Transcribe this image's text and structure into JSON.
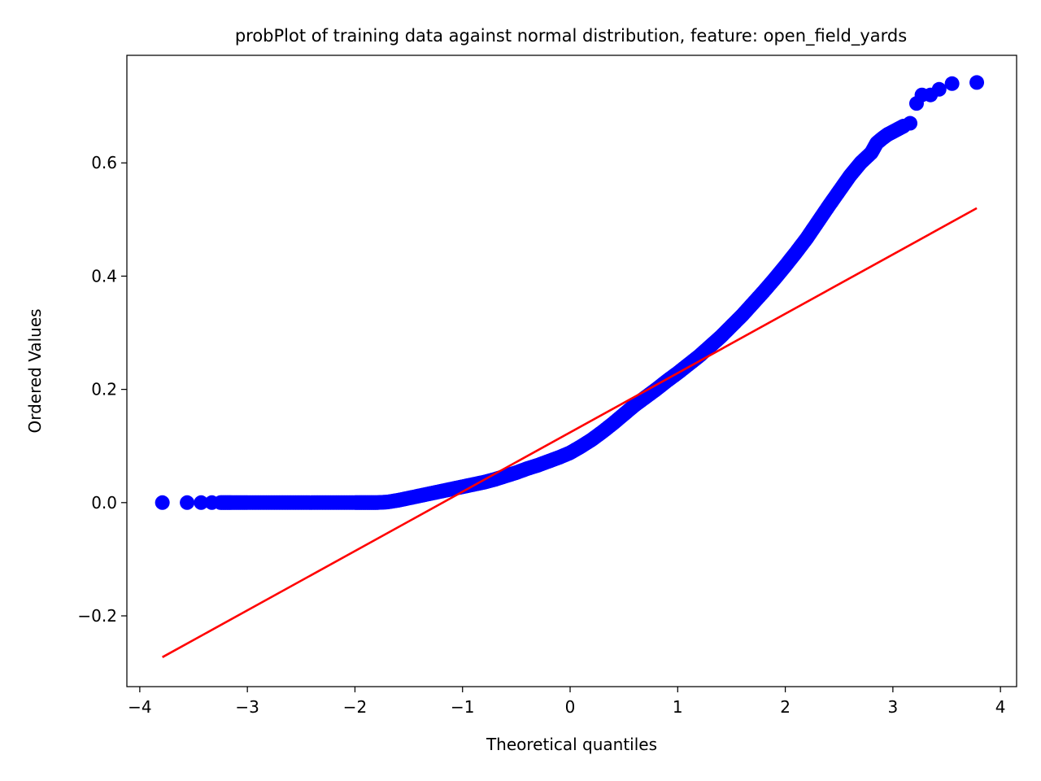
{
  "chart_data": {
    "type": "scatter",
    "title": "probPlot of training data against normal distribution, feature: open_field_yards",
    "xlabel": "Theoretical quantiles",
    "ylabel": "Ordered Values",
    "xlim": [
      -4.12,
      4.15
    ],
    "ylim": [
      -0.325,
      0.79
    ],
    "xticks": [
      -4,
      -3,
      -2,
      -1,
      0,
      1,
      2,
      3,
      4
    ],
    "xtick_labels": [
      "−4",
      "−3",
      "−2",
      "−1",
      "0",
      "1",
      "2",
      "3",
      "4"
    ],
    "yticks": [
      -0.2,
      0.0,
      0.2,
      0.4,
      0.6
    ],
    "ytick_labels": [
      "−0.2",
      "0.0",
      "0.2",
      "0.4",
      "0.6"
    ],
    "grid": false,
    "series": [
      {
        "kind": "points",
        "color": "#0000ff",
        "x": [
          -3.79,
          -3.56,
          -3.43,
          -3.33,
          -3.25,
          -3.15,
          -3.0,
          -2.8,
          -2.6,
          -2.4,
          -2.2,
          -2.0,
          -1.9,
          -1.8,
          -1.7,
          -1.6,
          -1.5,
          -1.4,
          -1.3,
          -1.2,
          -1.1,
          -1.0,
          -0.9,
          -0.8,
          -0.7,
          -0.6,
          -0.5,
          -0.4,
          -0.3,
          -0.2,
          -0.1,
          0.0,
          0.1,
          0.2,
          0.3,
          0.4,
          0.5,
          0.6,
          0.7,
          0.8,
          0.9,
          1.0,
          1.1,
          1.2,
          1.3,
          1.4,
          1.5,
          1.6,
          1.7,
          1.8,
          1.9,
          2.0,
          2.1,
          2.2,
          2.3,
          2.4,
          2.5,
          2.6,
          2.7,
          2.8,
          2.85,
          2.9,
          2.95,
          3.0,
          3.05,
          3.1,
          3.16,
          3.22,
          3.27,
          3.35,
          3.43,
          3.55,
          3.78
        ],
        "y": [
          0.0,
          0.0,
          0.0,
          0.0,
          0.0,
          0.0,
          0.0,
          0.0,
          0.0,
          0.0,
          0.0,
          0.0,
          0.0,
          0.0,
          0.001,
          0.004,
          0.008,
          0.012,
          0.016,
          0.02,
          0.024,
          0.028,
          0.032,
          0.036,
          0.041,
          0.047,
          0.053,
          0.06,
          0.066,
          0.073,
          0.08,
          0.088,
          0.099,
          0.111,
          0.125,
          0.14,
          0.156,
          0.172,
          0.186,
          0.2,
          0.215,
          0.229,
          0.244,
          0.259,
          0.276,
          0.293,
          0.312,
          0.331,
          0.352,
          0.373,
          0.395,
          0.418,
          0.442,
          0.467,
          0.495,
          0.523,
          0.55,
          0.577,
          0.6,
          0.618,
          0.635,
          0.643,
          0.65,
          0.655,
          0.66,
          0.665,
          0.67,
          0.705,
          0.72,
          0.72,
          0.73,
          0.74,
          0.742
        ]
      },
      {
        "kind": "line",
        "color": "#ff0000",
        "x": [
          -3.79,
          3.78
        ],
        "y": [
          -0.273,
          0.52
        ]
      }
    ]
  }
}
